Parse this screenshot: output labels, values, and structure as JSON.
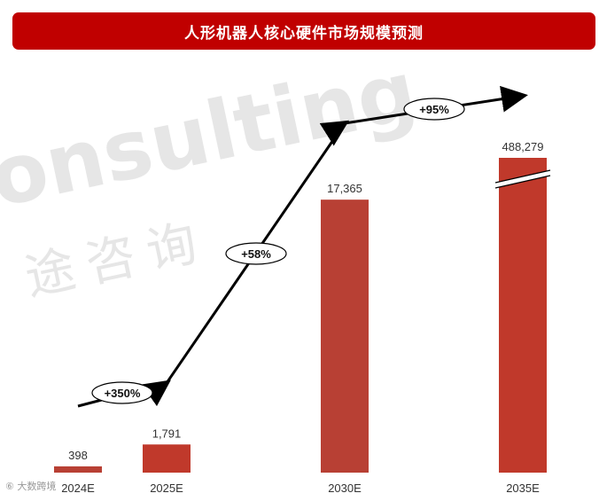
{
  "header": {
    "title": "人形机器人核心硬件市场规模预测"
  },
  "watermark": {
    "text": "onsulting",
    "text_cn": "途咨询"
  },
  "source": {
    "text": "⑥ 大数跨境"
  },
  "colors": {
    "title_bg": "#c00000",
    "bar": "#c0392b",
    "bar_alt": "#b84034"
  },
  "chart_data": {
    "type": "bar",
    "title": "人形机器人核心硬件市场规模预测",
    "categories": [
      "2024E",
      "2025E",
      "2030E",
      "2035E"
    ],
    "values": [
      398,
      1791,
      17365,
      488279
    ],
    "value_labels": [
      "398",
      "1,791",
      "17,365",
      "488,279"
    ],
    "axis_break_on": "2035E",
    "growth_labels": [
      "+350%",
      "+58%",
      "+95%"
    ],
    "grid": false,
    "legend": "none"
  }
}
